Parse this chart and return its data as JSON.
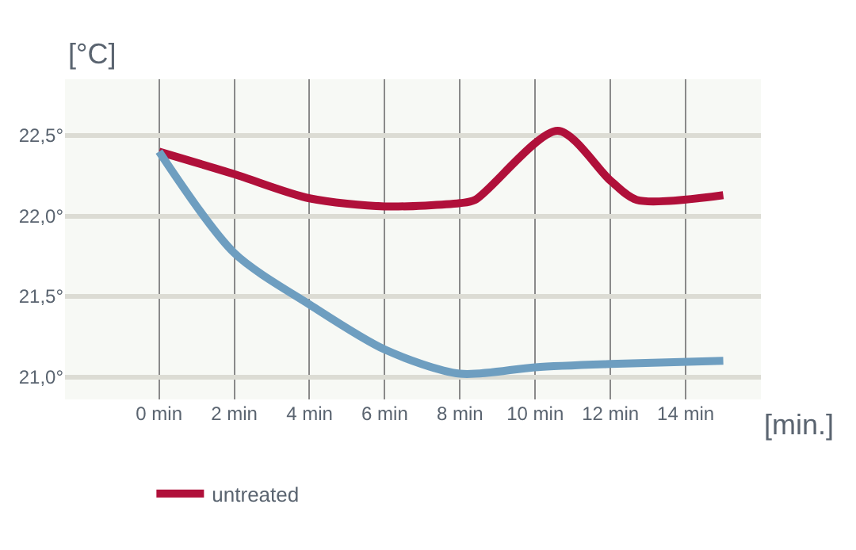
{
  "chart_data": {
    "type": "line",
    "xlabel": "[min.]",
    "ylabel": "[°C]",
    "x": [
      0,
      2,
      4,
      6,
      8,
      8.4,
      10.6,
      12,
      12.7,
      15
    ],
    "series": [
      {
        "name": "untreated",
        "color": "#b0103a",
        "values": [
          22.4,
          22.26,
          22.11,
          22.06,
          22.08,
          22.1,
          22.53,
          22.22,
          22.1,
          22.13
        ]
      },
      {
        "color": "#6e9ec0",
        "x": [
          0,
          2,
          4,
          6,
          8,
          10,
          12,
          15
        ],
        "values": [
          22.4,
          21.77,
          21.45,
          21.17,
          21.02,
          21.06,
          21.08,
          21.1
        ]
      }
    ],
    "xlim": [
      -2.5,
      16
    ],
    "ylim": [
      20.86,
      22.85
    ],
    "xticks": [
      {
        "value": 0,
        "label": "0 min"
      },
      {
        "value": 2,
        "label": "2 min"
      },
      {
        "value": 4,
        "label": "4 min"
      },
      {
        "value": 6,
        "label": "6 min"
      },
      {
        "value": 8,
        "label": "8 min"
      },
      {
        "value": 10,
        "label": "10 min"
      },
      {
        "value": 12,
        "label": "12 min"
      },
      {
        "value": 14,
        "label": "14 min"
      }
    ],
    "yticks": [
      {
        "value": 21.0,
        "label": "21,0°"
      },
      {
        "value": 21.5,
        "label": "21,5°"
      },
      {
        "value": 22.0,
        "label": "22,0°"
      },
      {
        "value": 22.5,
        "label": "22,5°"
      }
    ],
    "grid": true,
    "legend": "bottom left",
    "marker": "none",
    "line_style": "solid"
  }
}
